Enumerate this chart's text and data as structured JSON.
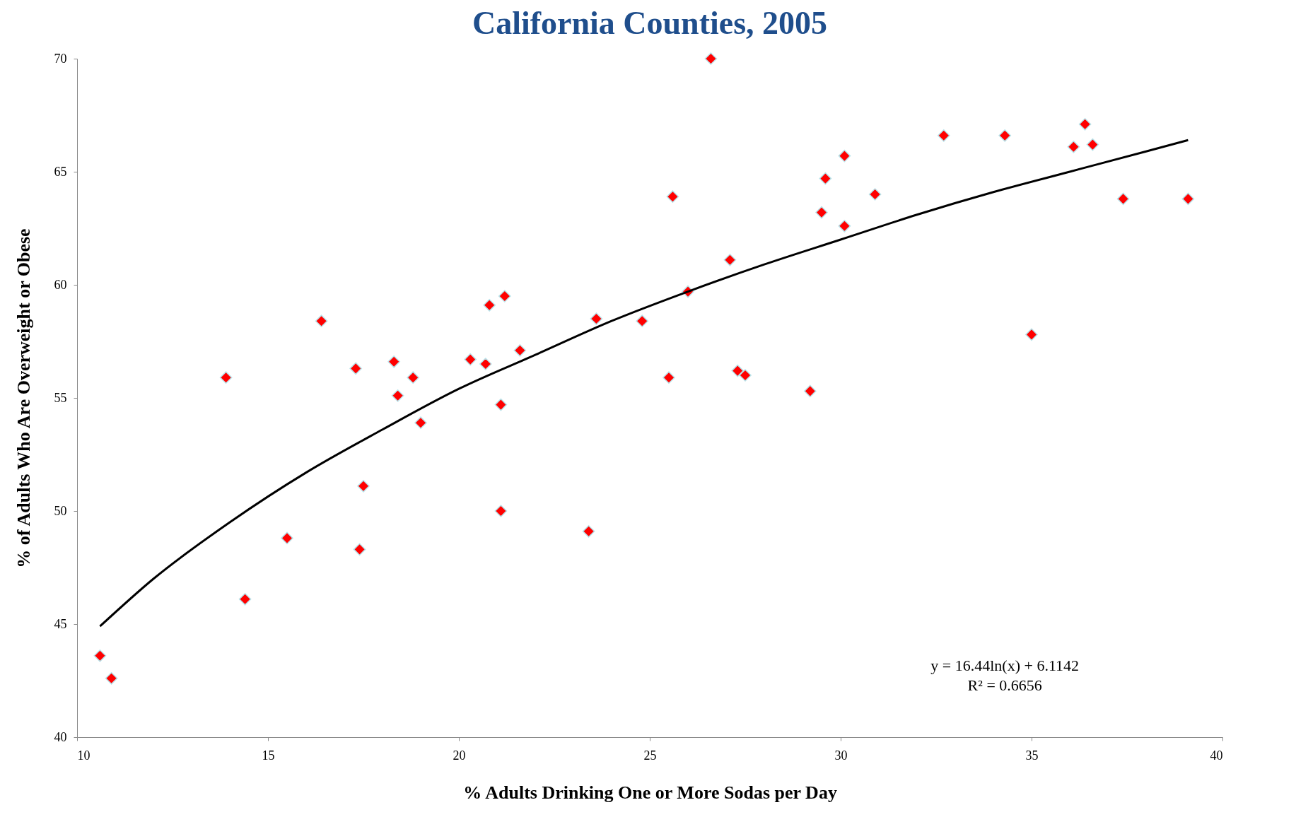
{
  "chart_data": {
    "type": "scatter",
    "title": "California Counties, 2005",
    "xlabel": "% Adults Drinking One or More Sodas per Day",
    "ylabel": "% of Adults Who Are Overweight or Obese",
    "x": [
      10.6,
      10.9,
      13.9,
      14.4,
      15.5,
      16.4,
      17.3,
      17.4,
      17.5,
      18.3,
      18.4,
      18.8,
      19.0,
      20.3,
      20.7,
      20.8,
      21.1,
      21.1,
      21.2,
      21.6,
      23.4,
      23.6,
      24.8,
      25.5,
      25.6,
      26.0,
      26.6,
      27.1,
      27.3,
      27.5,
      29.2,
      29.5,
      29.6,
      30.1,
      30.1,
      30.9,
      32.7,
      34.3,
      35.0,
      36.1,
      36.4,
      36.6,
      37.4,
      39.1
    ],
    "series": [
      {
        "color": "#ff0000",
        "values": [
          43.6,
          42.6,
          55.9,
          46.1,
          48.8,
          58.4,
          56.3,
          48.3,
          51.1,
          56.6,
          55.1,
          55.9,
          53.9,
          56.7,
          56.5,
          59.1,
          54.7,
          50.0,
          59.5,
          57.1,
          49.1,
          58.5,
          58.4,
          55.9,
          63.9,
          59.7,
          70.0,
          61.1,
          56.2,
          56.0,
          55.3,
          63.2,
          64.7,
          65.7,
          62.6,
          64.0,
          66.6,
          66.6,
          57.8,
          66.1,
          67.1,
          66.2,
          63.8,
          63.8
        ]
      },
      {
        "type": "line",
        "color": "#000000",
        "marker": "none",
        "x": [
          10.6,
          12,
          14,
          16,
          18,
          20,
          22,
          24,
          26,
          28,
          30,
          32,
          34,
          36,
          38,
          39.1
        ],
        "values": [
          44.9,
          47.0,
          49.5,
          51.7,
          53.6,
          55.4,
          56.9,
          58.4,
          59.7,
          60.9,
          62.0,
          63.1,
          64.1,
          65.0,
          65.9,
          66.4
        ]
      }
    ],
    "marker": "diamond",
    "xlim": [
      10,
      40
    ],
    "xticks": [
      10,
      15,
      20,
      25,
      30,
      35,
      40
    ],
    "ylim": [
      40,
      70
    ],
    "yticks": [
      40,
      45,
      50,
      55,
      60,
      65,
      70
    ],
    "grid": false,
    "annotations": [
      "y = 16.44ln(x) + 6.1142",
      "R² = 0.6656"
    ]
  }
}
